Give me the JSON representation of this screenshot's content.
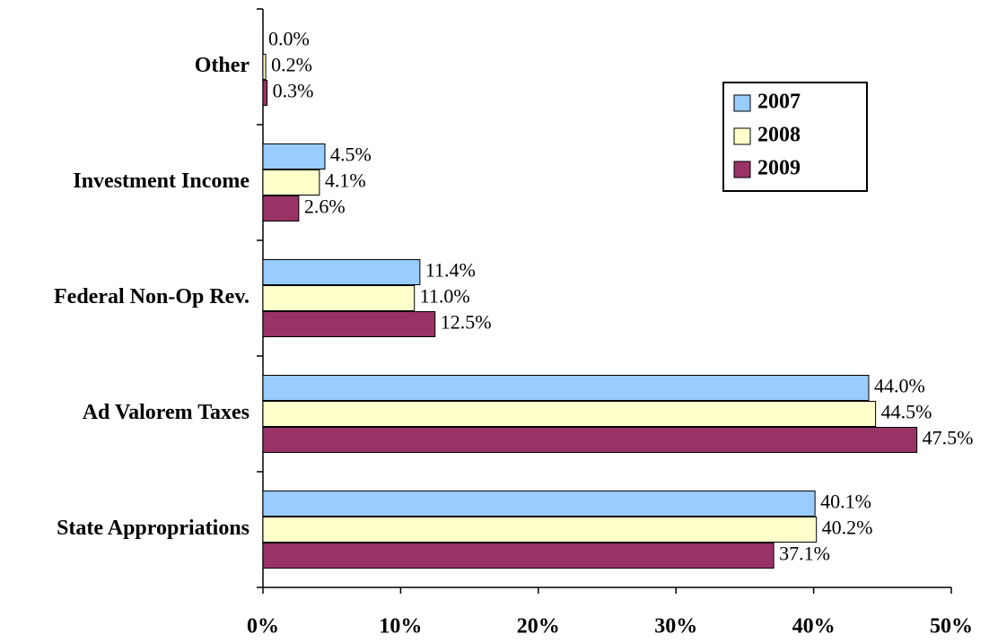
{
  "chart_data": {
    "type": "bar",
    "orientation": "horizontal",
    "categories": [
      "Other",
      "Investment Income",
      "Federal Non-Op Rev.",
      "Ad Valorem Taxes",
      "State Appropriations"
    ],
    "series": [
      {
        "name": "2007",
        "color": "#99ccff",
        "values": [
          0.0,
          4.5,
          11.4,
          44.0,
          40.1
        ],
        "value_labels": [
          "0.0%",
          "4.5%",
          "11.4%",
          "44.0%",
          "40.1%"
        ]
      },
      {
        "name": "2008",
        "color": "#ffffcc",
        "values": [
          0.2,
          4.1,
          11.0,
          44.5,
          40.2
        ],
        "value_labels": [
          "0.2%",
          "4.1%",
          "11.0%",
          "44.5%",
          "40.2%"
        ]
      },
      {
        "name": "2009",
        "color": "#993366",
        "values": [
          0.3,
          2.6,
          12.5,
          47.5,
          37.1
        ],
        "value_labels": [
          "0.3%",
          "2.6%",
          "12.5%",
          "47.5%",
          "37.1%"
        ]
      }
    ],
    "xlim": [
      0,
      50
    ],
    "xticks": [
      {
        "value": 0,
        "label": "0%"
      },
      {
        "value": 10,
        "label": "10%"
      },
      {
        "value": 20,
        "label": "20%"
      },
      {
        "value": 30,
        "label": "30%"
      },
      {
        "value": 40,
        "label": "40%"
      },
      {
        "value": 50,
        "label": "50%"
      }
    ],
    "legend": "top-right",
    "grid": false
  }
}
